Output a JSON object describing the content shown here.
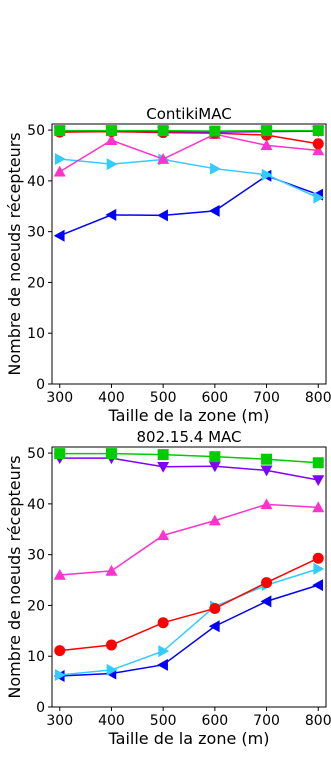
{
  "chart_data": [
    {
      "type": "line",
      "title": "ContikiMAC",
      "xlabel": "Taille de la zone (m)",
      "ylabel": "Nombre de noeuds récepteurs",
      "x": [
        300,
        400,
        500,
        600,
        700,
        800
      ],
      "xticks": [
        "300",
        "400",
        "500",
        "600",
        "700",
        "800"
      ],
      "yticks": [
        "0",
        "10",
        "20",
        "30",
        "40",
        "50"
      ],
      "xlim": [
        285,
        815
      ],
      "ylim": [
        0,
        51.2
      ],
      "grid": false,
      "series": [
        {
          "color": "#0000ff",
          "marker": "triangle-left",
          "values": [
            29.2,
            33.3,
            33.2,
            34.1,
            41.0,
            37.3
          ]
        },
        {
          "color": "#33ccff",
          "marker": "triangle-right",
          "values": [
            44.3,
            43.3,
            44.2,
            42.4,
            41.2,
            36.7
          ]
        },
        {
          "color": "#ff33cc",
          "marker": "triangle-up",
          "values": [
            41.8,
            48.0,
            44.3,
            49.2,
            47.0,
            46.0
          ]
        },
        {
          "color": "#ff0000",
          "marker": "circle",
          "values": [
            49.6,
            49.7,
            49.5,
            49.4,
            49.0,
            47.3
          ]
        },
        {
          "color": "#8000ff",
          "marker": "triangle-down",
          "values": [
            49.8,
            49.8,
            49.7,
            49.6,
            49.7,
            49.8
          ]
        },
        {
          "color": "#00cc00",
          "marker": "square",
          "values": [
            49.9,
            49.9,
            49.9,
            49.8,
            49.9,
            49.9
          ]
        }
      ]
    },
    {
      "type": "line",
      "title": "802.15.4 MAC",
      "xlabel": "Taille de la zone (m)",
      "ylabel": "Nombre de noeuds récepteurs",
      "x": [
        300,
        400,
        500,
        600,
        700,
        800
      ],
      "xticks": [
        "300",
        "400",
        "500",
        "600",
        "700",
        "800"
      ],
      "yticks": [
        "0",
        "10",
        "20",
        "30",
        "40",
        "50"
      ],
      "xlim": [
        285,
        815
      ],
      "ylim": [
        0,
        51.2
      ],
      "grid": false,
      "series": [
        {
          "color": "#0000ff",
          "marker": "triangle-left",
          "values": [
            6.1,
            6.6,
            8.3,
            15.9,
            20.8,
            24.0
          ]
        },
        {
          "color": "#33ccff",
          "marker": "triangle-right",
          "values": [
            6.3,
            7.3,
            11.0,
            19.8,
            24.0,
            27.2
          ]
        },
        {
          "color": "#ff0000",
          "marker": "circle",
          "values": [
            11.1,
            12.2,
            16.6,
            19.4,
            24.5,
            29.3
          ]
        },
        {
          "color": "#ff33cc",
          "marker": "triangle-up",
          "values": [
            26.0,
            26.8,
            33.8,
            36.7,
            39.9,
            39.3
          ]
        },
        {
          "color": "#8000ff",
          "marker": "triangle-down",
          "values": [
            49.0,
            49.0,
            47.3,
            47.4,
            46.6,
            44.7
          ]
        },
        {
          "color": "#00cc00",
          "marker": "square",
          "values": [
            49.9,
            49.9,
            49.7,
            49.3,
            48.8,
            48.1
          ]
        }
      ]
    }
  ]
}
